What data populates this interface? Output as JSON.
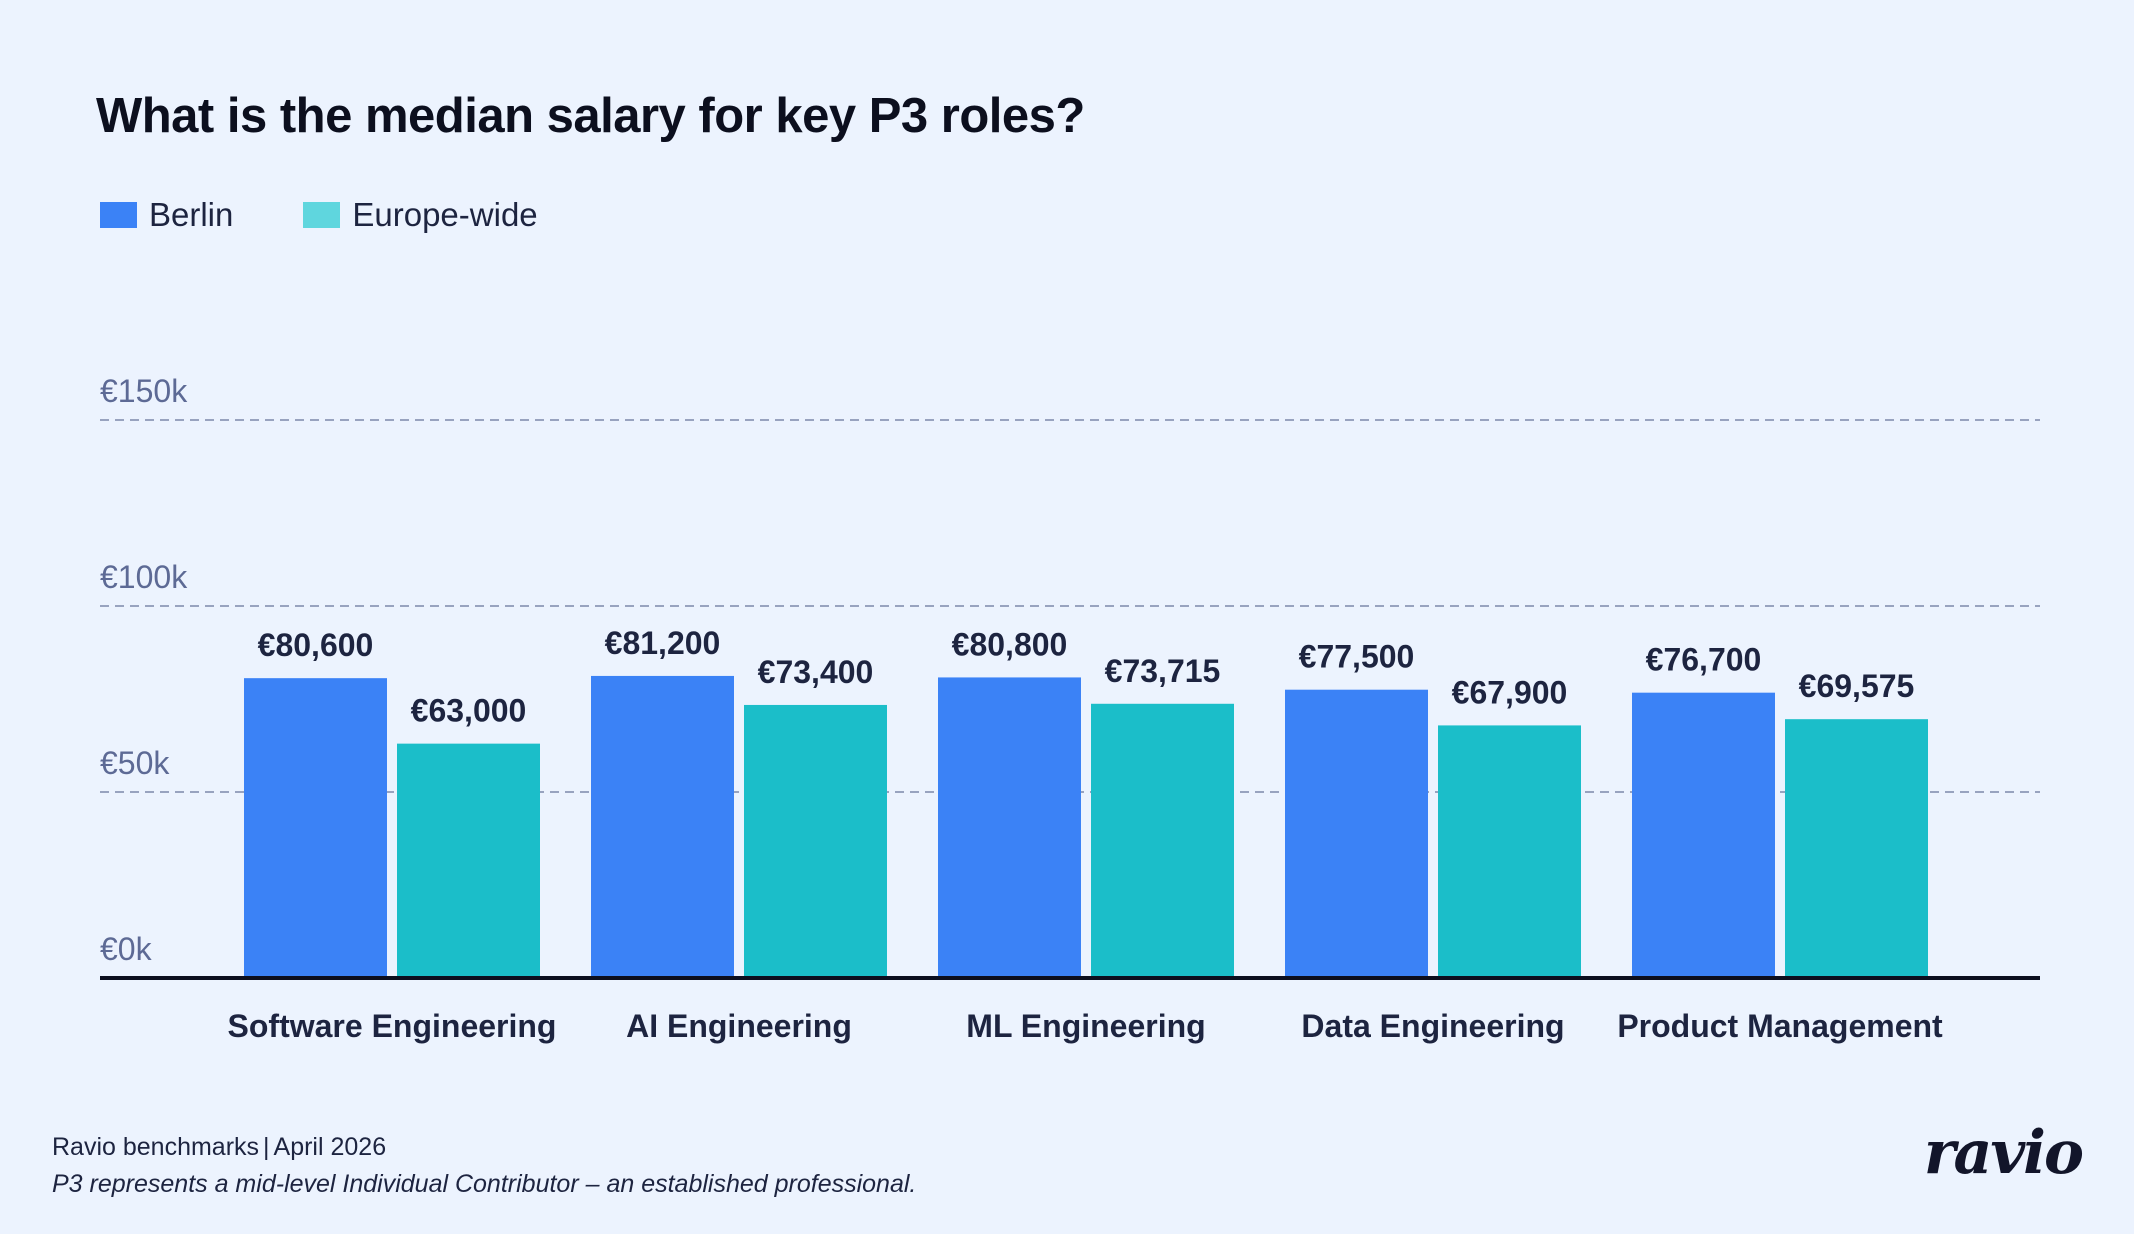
{
  "colors": {
    "background": "#ecf3fe",
    "berlin": "#3b82f6",
    "europe_wide": "#1bbec9",
    "europe_wide_legend": "#5fd6de",
    "grid": "#98a3bf",
    "baseline": "#0c0f1e",
    "text": "#1d2440",
    "tick_text": "#5d6a95"
  },
  "legend": [
    {
      "label": "Berlin",
      "color": "#3b82f6"
    },
    {
      "label": "Europe-wide",
      "color": "#5fd6de"
    }
  ],
  "footer": {
    "source": "Ravio benchmarks",
    "separator": "|",
    "date": "April 2026",
    "note": "P3 represents a mid-level Individual Contributor – an established professional."
  },
  "brand": {
    "logo_text": "ravio"
  },
  "chart_data": {
    "type": "bar",
    "title": "What is the median salary for key P3 roles?",
    "xlabel": "",
    "ylabel": "",
    "categories": [
      "Software Engineering",
      "AI Engineering",
      "ML Engineering",
      "Data Engineering",
      "Product Management"
    ],
    "series": [
      {
        "name": "Berlin",
        "color": "#3b82f6",
        "values": [
          80600,
          81200,
          80800,
          77500,
          76700
        ],
        "value_labels": [
          "€80,600",
          "€81,200",
          "€80,800",
          "€77,500",
          "€76,700"
        ]
      },
      {
        "name": "Europe-wide",
        "color": "#1bbec9",
        "values": [
          63000,
          73400,
          73715,
          67900,
          69575
        ],
        "value_labels": [
          "€63,000",
          "€73,400",
          "€73,715",
          "€67,900",
          "€69,575"
        ]
      }
    ],
    "ylim": [
      0,
      150000
    ],
    "yticks": [
      0,
      50000,
      100000,
      150000
    ],
    "ytick_labels": [
      "€0k",
      "€50k",
      "€100k",
      "€150k"
    ],
    "grid": "dashed horizontal",
    "legend_position": "top-left"
  }
}
